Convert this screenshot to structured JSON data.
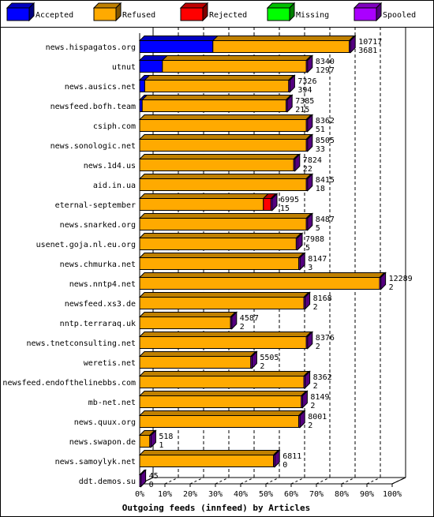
{
  "chart_data": {
    "type": "bar",
    "orientation": "horizontal",
    "stacked": true,
    "title": "",
    "xlabel": "Outgoing feeds (innfeed) by Articles",
    "ylabel": "",
    "xlim": [
      0,
      100
    ],
    "x_ticks": [
      "0%",
      "10%",
      "20%",
      "30%",
      "40%",
      "50%",
      "60%",
      "70%",
      "80%",
      "90%",
      "100%"
    ],
    "legend": {
      "placement": "top",
      "entries": [
        {
          "name": "Accepted",
          "color": "#0000ff"
        },
        {
          "name": "Refused",
          "color": "#ffaa00"
        },
        {
          "name": "Rejected",
          "color": "#ff0000"
        },
        {
          "name": "Missing",
          "color": "#00ff00"
        },
        {
          "name": "Spooled",
          "color": "#aa00ff"
        }
      ]
    },
    "series_colors": {
      "Accepted": "#0000ff",
      "Refused": "#ffaa00",
      "Rejected": "#ff0000",
      "Missing": "#00ff00",
      "Spooled": "#aa00ff"
    },
    "categories": [
      "news.hispagatos.org",
      "utnut",
      "news.ausics.net",
      "newsfeed.bofh.team",
      "csiph.com",
      "news.sonologic.net",
      "news.1d4.us",
      "aid.in.ua",
      "eternal-september",
      "news.snarked.org",
      "usenet.goja.nl.eu.org",
      "news.chmurka.net",
      "news.nntp4.net",
      "newsfeed.xs3.de",
      "nntp.terraraq.uk",
      "news.tnetconsulting.net",
      "weretis.net",
      "newsfeed.endofthelinebbs.com",
      "mb-net.net",
      "news.quux.org",
      "news.swapon.de",
      "news.samoylyk.net",
      "ddt.demos.su"
    ],
    "series": [
      {
        "name": "Accepted",
        "values": [
          29,
          9,
          2,
          1,
          0,
          0,
          0,
          0,
          0,
          0,
          0,
          0,
          0,
          0,
          0,
          0,
          0,
          0,
          0,
          0,
          0,
          0,
          0
        ]
      },
      {
        "name": "Refused",
        "values": [
          54,
          57,
          57,
          57,
          66,
          66,
          61,
          66,
          49,
          66,
          62,
          63,
          95,
          65,
          36,
          66,
          44,
          65,
          64,
          63,
          4,
          53,
          0
        ]
      },
      {
        "name": "Rejected",
        "values": [
          0,
          0,
          0,
          0,
          0,
          0,
          0,
          0,
          3,
          0,
          0,
          0,
          0,
          0,
          0,
          0,
          0,
          0,
          0,
          0,
          0,
          0,
          0
        ]
      },
      {
        "name": "Missing",
        "values": [
          0,
          0,
          0,
          0,
          0,
          0,
          0,
          0,
          0,
          0,
          0,
          0,
          0,
          0,
          0,
          0,
          0,
          0,
          0,
          0,
          0,
          0,
          0
        ]
      },
      {
        "name": "Spooled",
        "values": [
          0.5,
          0.5,
          0.5,
          0.5,
          0.5,
          0.5,
          0.5,
          0.5,
          0.5,
          0.5,
          0.5,
          0.5,
          0.5,
          0.5,
          0.5,
          0.5,
          0.5,
          0.5,
          0.5,
          0.5,
          0.5,
          0.5,
          0.5
        ]
      }
    ],
    "offered": [
      "10717",
      "8340",
      "7326",
      "7385",
      "8362",
      "8505",
      "7824",
      "8415",
      "6995",
      "8487",
      "7988",
      "8147",
      "12289",
      "8168",
      "4587",
      "8376",
      "5505",
      "8362",
      "8149",
      "8001",
      "518",
      "6811",
      "45"
    ],
    "accepted": [
      "3681",
      "1297",
      "394",
      "215",
      "51",
      "33",
      "22",
      "18",
      "15",
      "5",
      "5",
      "3",
      "2",
      "2",
      "2",
      "2",
      "2",
      "2",
      "2",
      "2",
      "1",
      "0",
      "0"
    ]
  }
}
